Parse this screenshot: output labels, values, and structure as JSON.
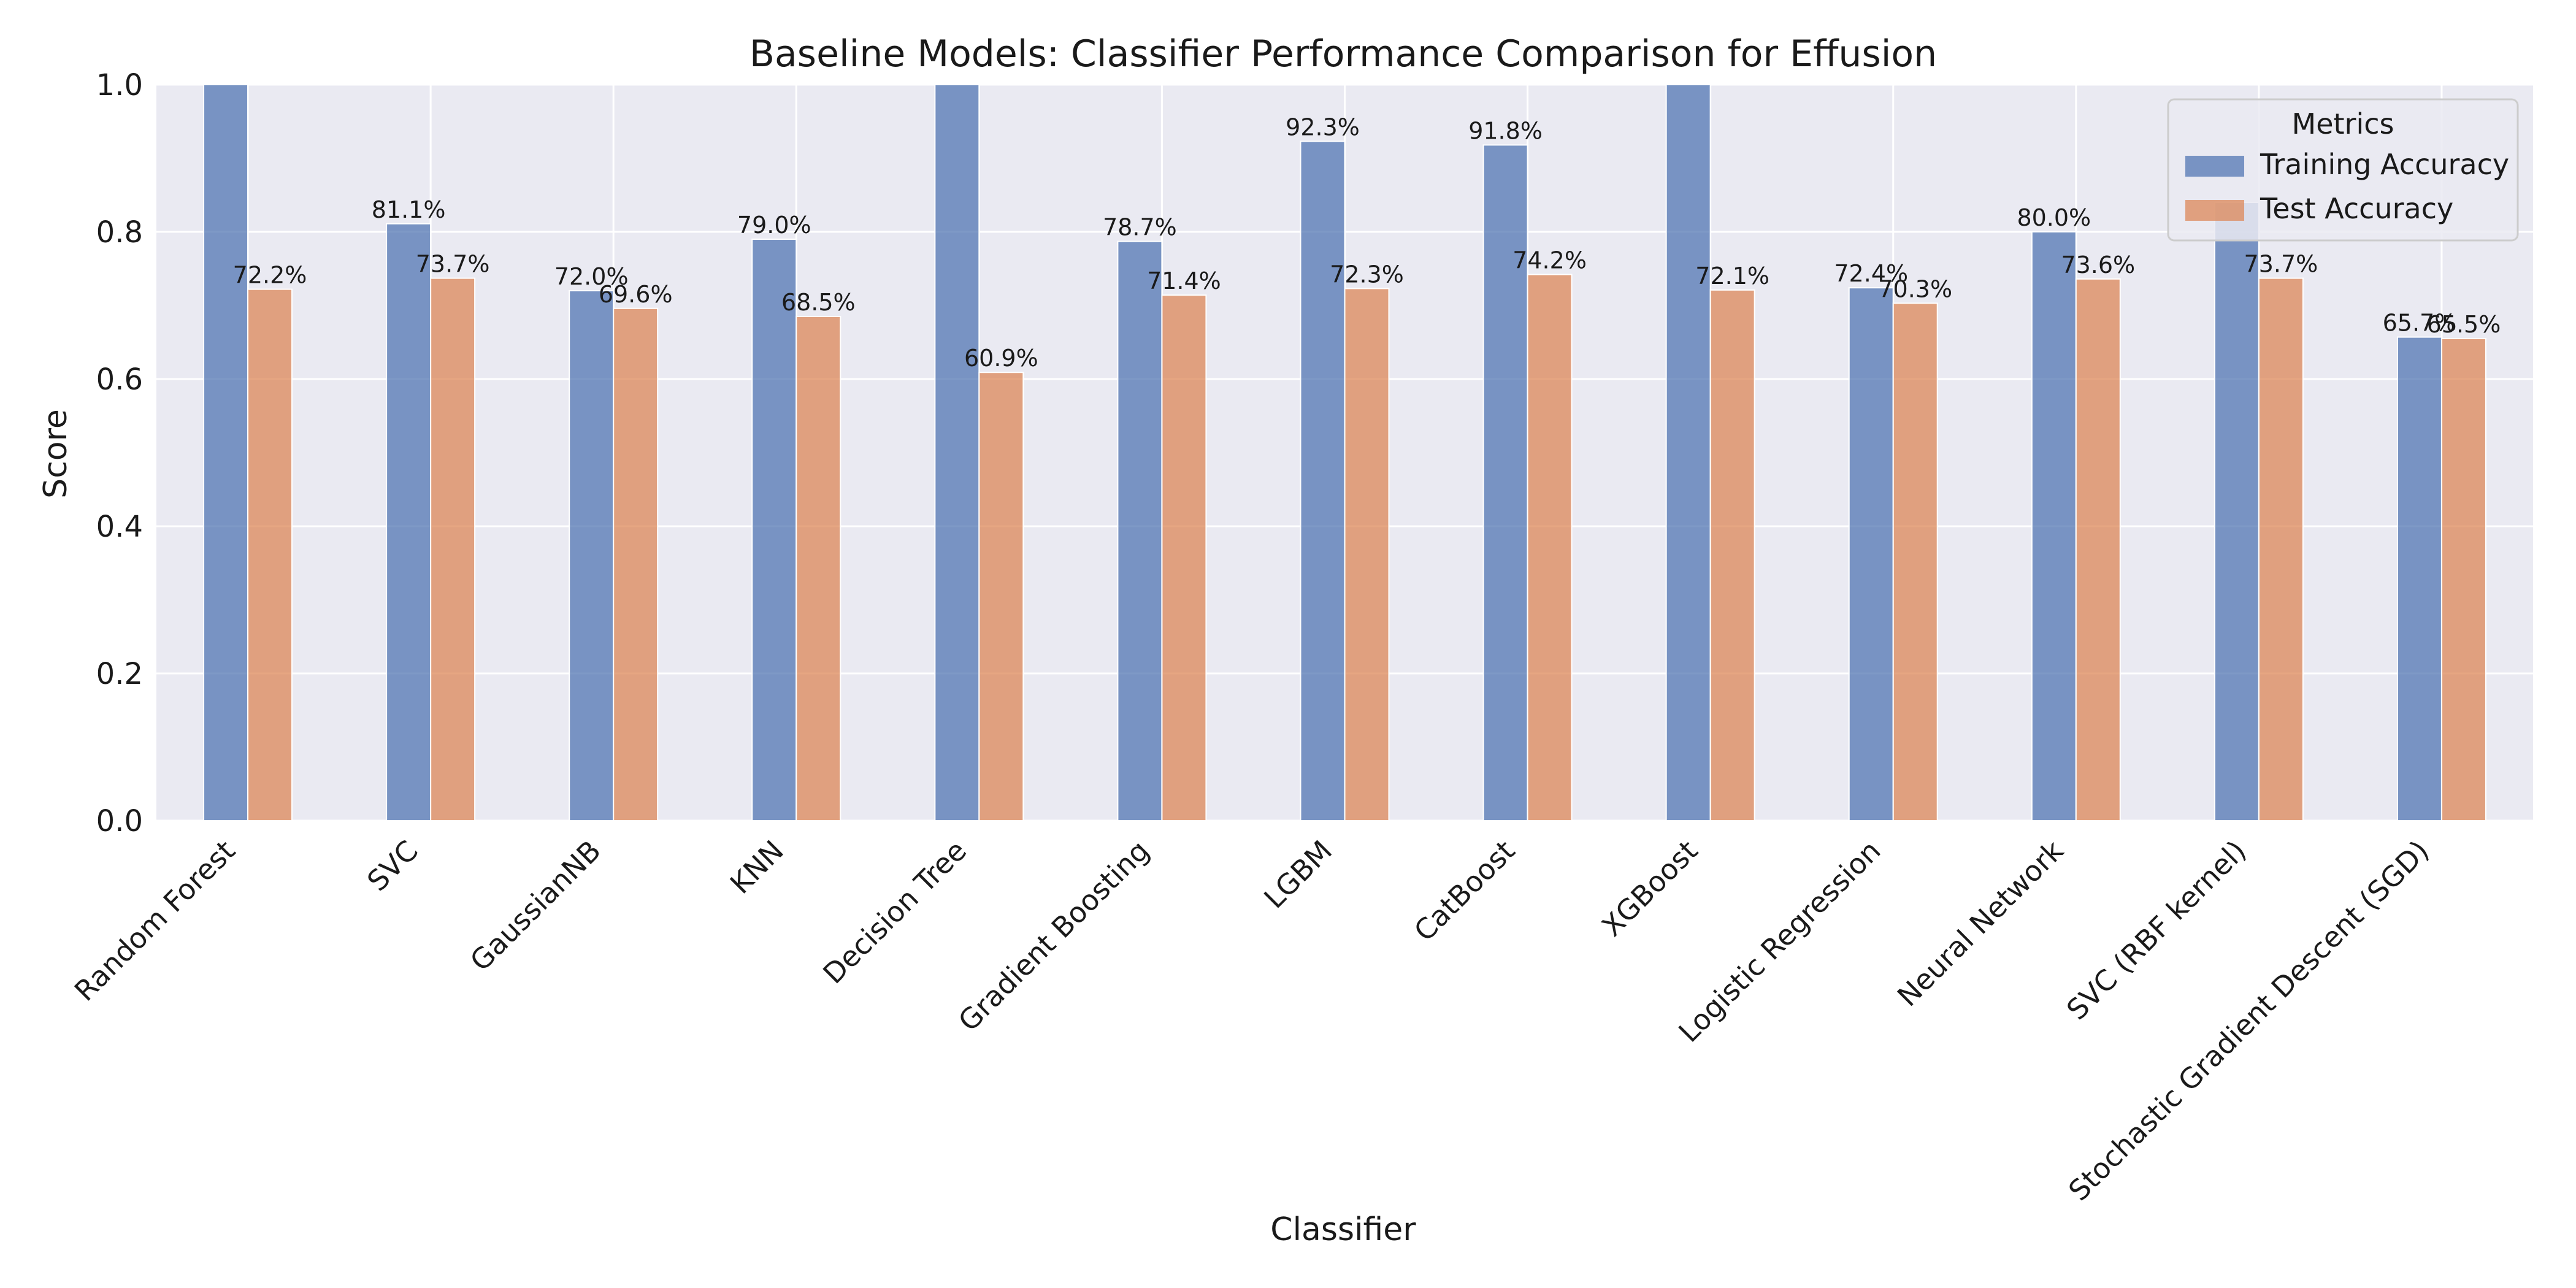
{
  "chart_data": {
    "type": "bar",
    "title": "Baseline Models: Classifier Performance Comparison for Effusion",
    "xlabel": "Classifier",
    "ylabel": "Score",
    "ylim": [
      0,
      1.0
    ],
    "yticks": [
      "0.0",
      "0.2",
      "0.4",
      "0.6",
      "0.8",
      "1.0"
    ],
    "grid": true,
    "legend_title": "Metrics",
    "legend_position": "top-right",
    "categories": [
      "Random Forest",
      "SVC",
      "GaussianNB",
      "KNN",
      "Decision Tree",
      "Gradient Boosting",
      "LGBM",
      "CatBoost",
      "XGBoost",
      "Logistic Regression",
      "Neural Network",
      "SVC (RBF kernel)",
      "Stochastic Gradient Descent (SGD)"
    ],
    "series": [
      {
        "name": "Training Accuracy",
        "color": "#4c72b0",
        "values": [
          1.0,
          0.811,
          0.72,
          0.79,
          1.0,
          0.787,
          0.923,
          0.918,
          1.0,
          0.724,
          0.8,
          0.84,
          0.657
        ],
        "labels": [
          "",
          "81.1%",
          "72.0%",
          "79.0%",
          "",
          "78.7%",
          "92.3%",
          "91.8%",
          "",
          "72.4%",
          "80.0%",
          "",
          "65.7%"
        ]
      },
      {
        "name": "Test Accuracy",
        "color": "#dd8452",
        "values": [
          0.722,
          0.737,
          0.696,
          0.685,
          0.609,
          0.714,
          0.723,
          0.742,
          0.721,
          0.703,
          0.736,
          0.737,
          0.655
        ],
        "labels": [
          "72.2%",
          "73.7%",
          "69.6%",
          "68.5%",
          "60.9%",
          "71.4%",
          "72.3%",
          "74.2%",
          "72.1%",
          "70.3%",
          "73.6%",
          "73.7%",
          "65.5%"
        ]
      }
    ]
  }
}
